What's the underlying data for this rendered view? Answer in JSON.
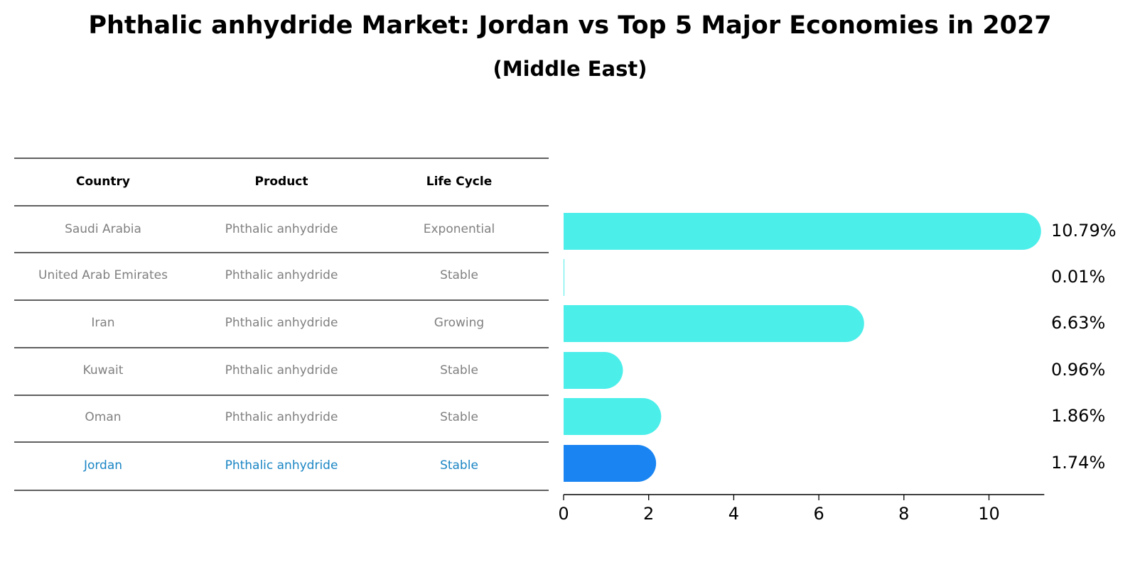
{
  "title": "Phthalic anhydride Market: Jordan vs Top 5 Major Economies in 2027",
  "subtitle": "(Middle East)",
  "table": {
    "headers": [
      "Country",
      "Product",
      "Life Cycle"
    ],
    "rows": [
      [
        "Saudi Arabia",
        "Phthalic anhydride",
        "Exponential"
      ],
      [
        "United Arab Emirates",
        "Phthalic anhydride",
        "Stable"
      ],
      [
        "Iran",
        "Phthalic anhydride",
        "Growing"
      ],
      [
        "Kuwait",
        "Phthalic anhydride",
        "Stable"
      ],
      [
        "Oman",
        "Phthalic anhydride",
        "Stable"
      ],
      [
        "Jordan",
        "Phthalic anhydride",
        "Stable"
      ]
    ],
    "highlight_row": 5
  },
  "colors": {
    "bar": "#4ceeea",
    "highlight_bar": "#1a85f2",
    "highlight_text": "#1a85c4",
    "text_muted": "#808080"
  },
  "chart_data": {
    "type": "bar",
    "orientation": "horizontal",
    "categories": [
      "Saudi Arabia",
      "United Arab Emirates",
      "Iran",
      "Kuwait",
      "Oman",
      "Jordan"
    ],
    "values": [
      10.79,
      0.01,
      6.63,
      0.96,
      1.86,
      1.74
    ],
    "value_labels": [
      "10.79%",
      "0.01%",
      "6.63%",
      "0.96%",
      "1.86%",
      "1.74%"
    ],
    "xlim": [
      0,
      11.3
    ],
    "xticks": [
      0,
      2,
      4,
      6,
      8,
      10
    ],
    "grid": false
  }
}
